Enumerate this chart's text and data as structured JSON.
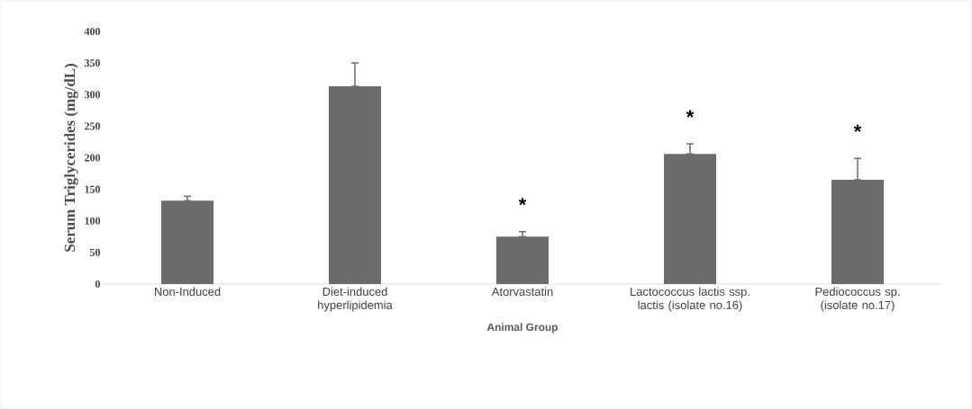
{
  "chart_data": {
    "type": "bar",
    "ylabel": "Serum Triglycerides (mg/dL)",
    "xlabel": "Animal Group",
    "categories": [
      "Non-Induced",
      "Diet-induced hyperlipidemia",
      "Atorvastatin",
      "Lactococcus lactis ssp. lactis  (isolate no.16)",
      "Pediococcus sp. (isolate no.17)"
    ],
    "values": [
      132,
      313,
      75,
      206,
      165
    ],
    "errors": [
      [
        132,
        139
      ],
      [
        313,
        350
      ],
      [
        75,
        83
      ],
      [
        206,
        222
      ],
      [
        165,
        199
      ]
    ],
    "color": "#6b6b6b",
    "ylim": [
      0,
      400
    ],
    "yticks": [
      0,
      50,
      100,
      150,
      200,
      250,
      300,
      350,
      400
    ],
    "annotations": [
      {
        "text": "*",
        "x": "Atorvastatin",
        "y": 83
      },
      {
        "text": "*",
        "x": "Lactococcus lactis ssp. lactis  (isolate no.16)",
        "y": 222
      },
      {
        "text": "*",
        "x": "Pediococcus sp. (isolate no.17)",
        "y": 199
      }
    ],
    "grid": false
  }
}
